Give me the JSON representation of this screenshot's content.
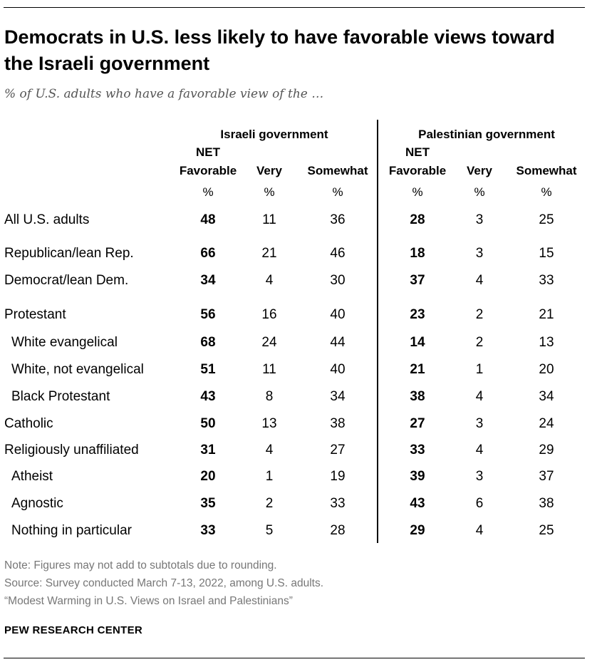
{
  "title": "Democrats in U.S. less likely to have favorable views toward the Israeli government",
  "subtitle": "% of U.S. adults who have a favorable view of the …",
  "chart_data": {
    "type": "table",
    "groups": [
      "Israeli government",
      "Palestinian government"
    ],
    "columns": [
      {
        "top": "NET",
        "label": "Favorable",
        "unit": "%"
      },
      {
        "top": "",
        "label": "Very",
        "unit": "%"
      },
      {
        "top": "",
        "label": "Somewhat",
        "unit": "%"
      }
    ],
    "rows": [
      {
        "label": "All U.S. adults",
        "indent": false,
        "israeli": [
          48,
          11,
          36
        ],
        "palestinian": [
          28,
          3,
          25
        ]
      },
      {
        "label": "Republican/lean Rep.",
        "indent": false,
        "israeli": [
          66,
          21,
          46
        ],
        "palestinian": [
          18,
          3,
          15
        ]
      },
      {
        "label": "Democrat/lean Dem.",
        "indent": false,
        "israeli": [
          34,
          4,
          30
        ],
        "palestinian": [
          37,
          4,
          33
        ]
      },
      {
        "label": "Protestant",
        "indent": false,
        "israeli": [
          56,
          16,
          40
        ],
        "palestinian": [
          23,
          2,
          21
        ]
      },
      {
        "label": "White evangelical",
        "indent": true,
        "israeli": [
          68,
          24,
          44
        ],
        "palestinian": [
          14,
          2,
          13
        ]
      },
      {
        "label": "White, not evangelical",
        "indent": true,
        "israeli": [
          51,
          11,
          40
        ],
        "palestinian": [
          21,
          1,
          20
        ]
      },
      {
        "label": "Black Protestant",
        "indent": true,
        "israeli": [
          43,
          8,
          34
        ],
        "palestinian": [
          38,
          4,
          34
        ]
      },
      {
        "label": "Catholic",
        "indent": false,
        "israeli": [
          50,
          13,
          38
        ],
        "palestinian": [
          27,
          3,
          24
        ]
      },
      {
        "label": "Religiously unaffiliated",
        "indent": false,
        "israeli": [
          31,
          4,
          27
        ],
        "palestinian": [
          33,
          4,
          29
        ]
      },
      {
        "label": "Atheist",
        "indent": true,
        "israeli": [
          20,
          1,
          19
        ],
        "palestinian": [
          39,
          3,
          37
        ]
      },
      {
        "label": "Agnostic",
        "indent": true,
        "israeli": [
          35,
          2,
          33
        ],
        "palestinian": [
          43,
          6,
          38
        ]
      },
      {
        "label": "Nothing in particular",
        "indent": true,
        "israeli": [
          33,
          5,
          28
        ],
        "palestinian": [
          29,
          4,
          25
        ]
      }
    ]
  },
  "notes": [
    "Note: Figures may not add to subtotals due to rounding.",
    "Source: Survey conducted March 7-13, 2022, among U.S. adults.",
    "“Modest Warming in U.S. Views on Israel and Palestinians”"
  ],
  "brand": "PEW RESEARCH CENTER"
}
